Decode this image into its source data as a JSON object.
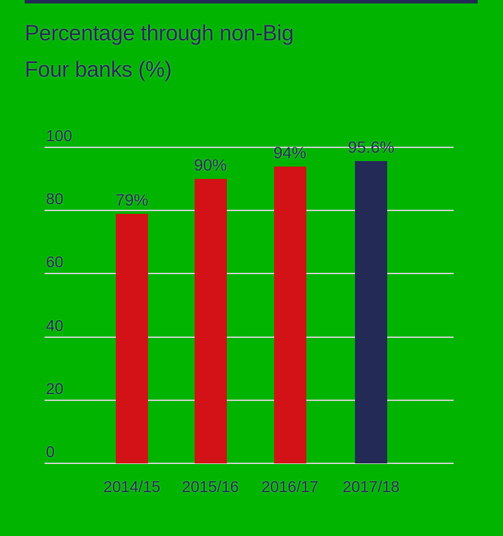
{
  "theme": {
    "background": "#00b400",
    "accent_bar": "#232a55",
    "text": "#232a55",
    "gridline": "#d4d4d4",
    "bar_red": "#d21217",
    "bar_navy": "#232a55"
  },
  "title": {
    "line1": "Percentage through non-Big",
    "line2": "Four banks (%)"
  },
  "chart_data": {
    "type": "bar",
    "title": "Percentage through non-Big Four banks (%)",
    "categories": [
      "2014/15",
      "2015/16",
      "2016/17",
      "2017/18"
    ],
    "values": [
      79,
      90,
      94,
      95.6
    ],
    "data_labels": [
      "79%",
      "90%",
      "94%",
      "95.6%"
    ],
    "bar_colors": [
      "#d21217",
      "#d21217",
      "#d21217",
      "#232a55"
    ],
    "xlabel": "",
    "ylabel": "",
    "ylim": [
      0,
      100
    ],
    "yticks": [
      0,
      20,
      40,
      60,
      80,
      100
    ],
    "grid": true,
    "legend": false
  }
}
